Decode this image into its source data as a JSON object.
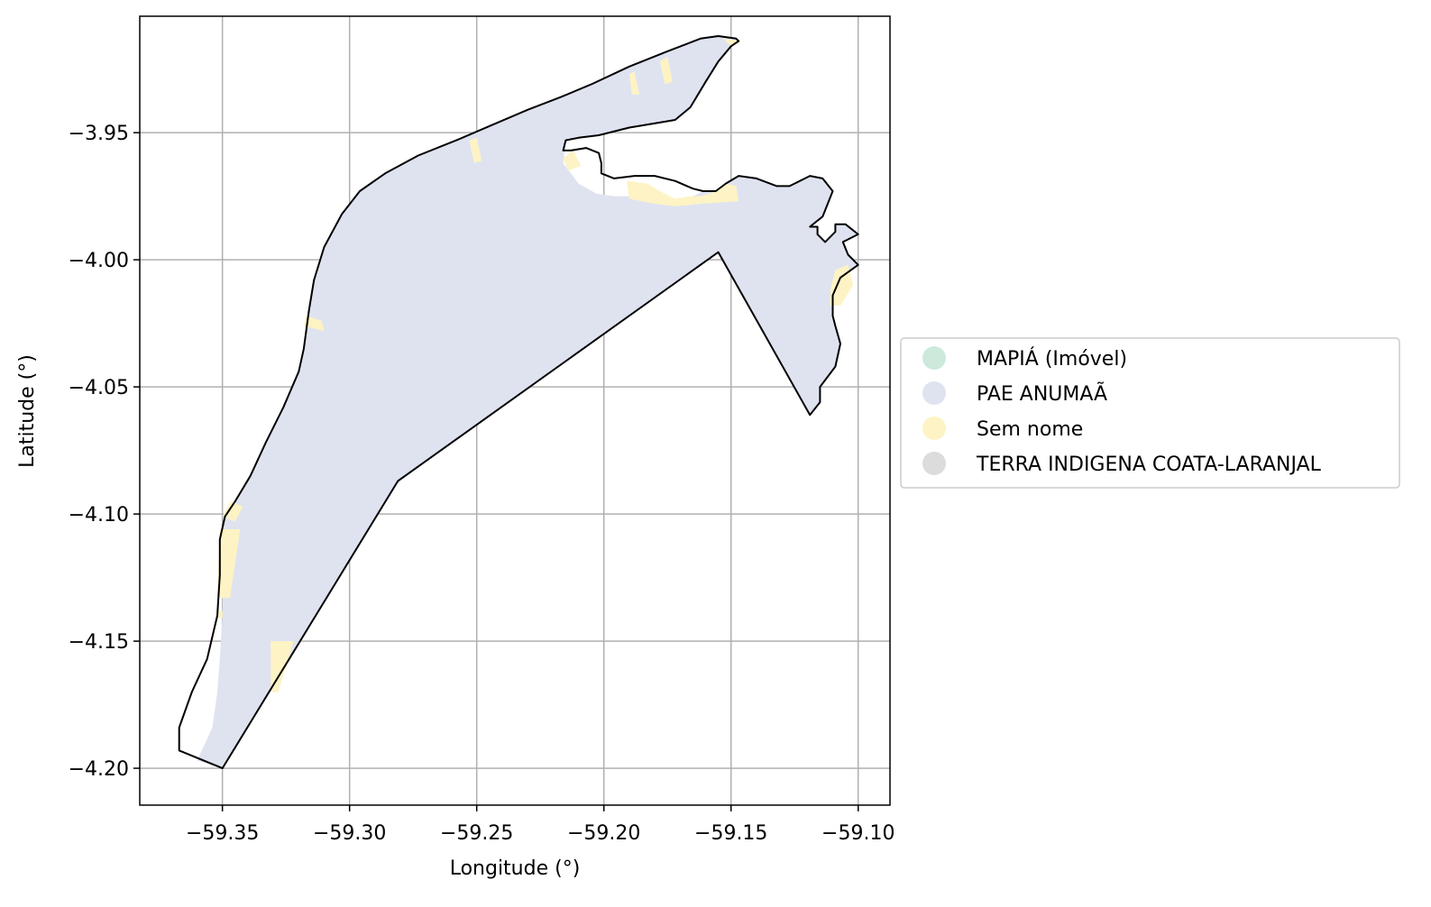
{
  "chart_data": {
    "type": "map",
    "xlabel": "Longitude (°)",
    "ylabel": "Latitude (°)",
    "xlim": [
      -59.3825,
      -59.0875
    ],
    "ylim": [
      -4.2145,
      -3.9042
    ],
    "xticks": [
      -59.35,
      -59.3,
      -59.25,
      -59.2,
      -59.15,
      -59.1
    ],
    "xtick_labels": [
      "−59.35",
      "−59.30",
      "−59.25",
      "−59.20",
      "−59.15",
      "−59.10"
    ],
    "yticks": [
      -3.95,
      -4.0,
      -4.05,
      -4.1,
      -4.15,
      -4.2
    ],
    "ytick_labels": [
      "−3.95",
      "−4.00",
      "−4.05",
      "−4.10",
      "−4.15",
      "−4.20"
    ],
    "grid": true,
    "legend_position": "right",
    "legend": [
      {
        "label": "MAPIÁ (Imóvel)",
        "color": "#cde9dc"
      },
      {
        "label": "PAE ANUMAÃ",
        "color": "#dfe3f0"
      },
      {
        "label": "Sem nome",
        "color": "#fdf3c4"
      },
      {
        "label": "TERRA INDIGENA COATA-LARANJAL",
        "color": "#dcdcdc"
      }
    ],
    "colors": {
      "boundary": "#000000",
      "pae": "#dfe3f0",
      "sem_nome": "#fdf3c4",
      "grid": "#b0b0b0"
    },
    "boundary_outline": [
      [
        -59.367,
        -4.193
      ],
      [
        -59.35,
        -4.2
      ],
      [
        -59.281,
        -4.087
      ],
      [
        -59.155,
        -3.997
      ],
      [
        -59.119,
        -4.061
      ],
      [
        -59.115,
        -4.056
      ],
      [
        -59.115,
        -4.05
      ],
      [
        -59.109,
        -4.042
      ],
      [
        -59.107,
        -4.033
      ],
      [
        -59.109,
        -4.026
      ],
      [
        -59.11,
        -4.022
      ],
      [
        -59.11,
        -4.014
      ],
      [
        -59.107,
        -4.007
      ],
      [
        -59.1,
        -4.002
      ],
      [
        -59.104,
        -3.998
      ],
      [
        -59.106,
        -3.993
      ],
      [
        -59.1,
        -3.99
      ],
      [
        -59.105,
        -3.986
      ],
      [
        -59.109,
        -3.986
      ],
      [
        -59.109,
        -3.989
      ],
      [
        -59.113,
        -3.993
      ],
      [
        -59.116,
        -3.99
      ],
      [
        -59.116,
        -3.987
      ],
      [
        -59.119,
        -3.987
      ],
      [
        -59.114,
        -3.983
      ],
      [
        -59.11,
        -3.973
      ],
      [
        -59.114,
        -3.968
      ],
      [
        -59.119,
        -3.967
      ],
      [
        -59.127,
        -3.971
      ],
      [
        -59.132,
        -3.971
      ],
      [
        -59.14,
        -3.968
      ],
      [
        -59.147,
        -3.967
      ],
      [
        -59.152,
        -3.97
      ],
      [
        -59.156,
        -3.973
      ],
      [
        -59.161,
        -3.973
      ],
      [
        -59.165,
        -3.972
      ],
      [
        -59.172,
        -3.969
      ],
      [
        -59.18,
        -3.967
      ],
      [
        -59.188,
        -3.967
      ],
      [
        -59.196,
        -3.968
      ],
      [
        -59.201,
        -3.966
      ],
      [
        -59.201,
        -3.962
      ],
      [
        -59.202,
        -3.958
      ],
      [
        -59.207,
        -3.956
      ],
      [
        -59.213,
        -3.957
      ],
      [
        -59.216,
        -3.957
      ],
      [
        -59.215,
        -3.953
      ],
      [
        -59.21,
        -3.952
      ],
      [
        -59.202,
        -3.951
      ],
      [
        -59.19,
        -3.948
      ],
      [
        -59.178,
        -3.946
      ],
      [
        -59.172,
        -3.945
      ],
      [
        -59.166,
        -3.94
      ],
      [
        -59.16,
        -3.93
      ],
      [
        -59.155,
        -3.922
      ],
      [
        -59.15,
        -3.916
      ],
      [
        -59.147,
        -3.914
      ],
      [
        -59.148,
        -3.913
      ],
      [
        -59.155,
        -3.912
      ],
      [
        -59.162,
        -3.913
      ],
      [
        -59.175,
        -3.918
      ],
      [
        -59.19,
        -3.924
      ],
      [
        -59.205,
        -3.931
      ],
      [
        -59.217,
        -3.936
      ],
      [
        -59.23,
        -3.941
      ],
      [
        -59.244,
        -3.947
      ],
      [
        -59.258,
        -3.953
      ],
      [
        -59.273,
        -3.959
      ],
      [
        -59.286,
        -3.966
      ],
      [
        -59.296,
        -3.973
      ],
      [
        -59.303,
        -3.982
      ],
      [
        -59.31,
        -3.995
      ],
      [
        -59.314,
        -4.008
      ],
      [
        -59.316,
        -4.02
      ],
      [
        -59.318,
        -4.035
      ],
      [
        -59.32,
        -4.044
      ],
      [
        -59.326,
        -4.058
      ],
      [
        -59.333,
        -4.072
      ],
      [
        -59.339,
        -4.085
      ],
      [
        -59.345,
        -4.095
      ],
      [
        -59.349,
        -4.101
      ],
      [
        -59.351,
        -4.11
      ],
      [
        -59.351,
        -4.124
      ],
      [
        -59.352,
        -4.14
      ],
      [
        -59.356,
        -4.157
      ],
      [
        -59.362,
        -4.17
      ],
      [
        -59.367,
        -4.184
      ],
      [
        -59.367,
        -4.193
      ]
    ],
    "pae_polygon": [
      [
        -59.36,
        -4.197
      ],
      [
        -59.35,
        -4.2
      ],
      [
        -59.281,
        -4.087
      ],
      [
        -59.155,
        -3.997
      ],
      [
        -59.119,
        -4.061
      ],
      [
        -59.115,
        -4.056
      ],
      [
        -59.115,
        -4.05
      ],
      [
        -59.109,
        -4.042
      ],
      [
        -59.107,
        -4.033
      ],
      [
        -59.109,
        -4.026
      ],
      [
        -59.11,
        -4.022
      ],
      [
        -59.11,
        -4.014
      ],
      [
        -59.107,
        -4.007
      ],
      [
        -59.1,
        -4.002
      ],
      [
        -59.104,
        -3.998
      ],
      [
        -59.106,
        -3.993
      ],
      [
        -59.1,
        -3.99
      ],
      [
        -59.105,
        -3.986
      ],
      [
        -59.109,
        -3.986
      ],
      [
        -59.109,
        -3.989
      ],
      [
        -59.113,
        -3.993
      ],
      [
        -59.116,
        -3.99
      ],
      [
        -59.116,
        -3.987
      ],
      [
        -59.119,
        -3.987
      ],
      [
        -59.114,
        -3.983
      ],
      [
        -59.11,
        -3.973
      ],
      [
        -59.114,
        -3.968
      ],
      [
        -59.119,
        -3.967
      ],
      [
        -59.127,
        -3.971
      ],
      [
        -59.132,
        -3.971
      ],
      [
        -59.14,
        -3.968
      ],
      [
        -59.147,
        -3.967
      ],
      [
        -59.152,
        -3.97
      ],
      [
        -59.156,
        -3.973
      ],
      [
        -59.161,
        -3.973
      ],
      [
        -59.165,
        -3.975
      ],
      [
        -59.172,
        -3.976
      ],
      [
        -59.18,
        -3.975
      ],
      [
        -59.188,
        -3.975
      ],
      [
        -59.196,
        -3.975
      ],
      [
        -59.203,
        -3.974
      ],
      [
        -59.21,
        -3.97
      ],
      [
        -59.216,
        -3.962
      ],
      [
        -59.215,
        -3.953
      ],
      [
        -59.21,
        -3.952
      ],
      [
        -59.202,
        -3.951
      ],
      [
        -59.19,
        -3.948
      ],
      [
        -59.178,
        -3.946
      ],
      [
        -59.172,
        -3.945
      ],
      [
        -59.166,
        -3.94
      ],
      [
        -59.16,
        -3.93
      ],
      [
        -59.155,
        -3.922
      ],
      [
        -59.15,
        -3.916
      ],
      [
        -59.147,
        -3.914
      ],
      [
        -59.148,
        -3.913
      ],
      [
        -59.155,
        -3.912
      ],
      [
        -59.162,
        -3.913
      ],
      [
        -59.175,
        -3.918
      ],
      [
        -59.19,
        -3.924
      ],
      [
        -59.205,
        -3.931
      ],
      [
        -59.217,
        -3.936
      ],
      [
        -59.23,
        -3.941
      ],
      [
        -59.244,
        -3.947
      ],
      [
        -59.258,
        -3.953
      ],
      [
        -59.273,
        -3.959
      ],
      [
        -59.286,
        -3.966
      ],
      [
        -59.296,
        -3.973
      ],
      [
        -59.303,
        -3.982
      ],
      [
        -59.31,
        -3.995
      ],
      [
        -59.314,
        -4.008
      ],
      [
        -59.316,
        -4.02
      ],
      [
        -59.318,
        -4.035
      ],
      [
        -59.32,
        -4.044
      ],
      [
        -59.326,
        -4.058
      ],
      [
        -59.333,
        -4.072
      ],
      [
        -59.339,
        -4.085
      ],
      [
        -59.345,
        -4.095
      ],
      [
        -59.349,
        -4.101
      ],
      [
        -59.351,
        -4.11
      ],
      [
        -59.35,
        -4.124
      ],
      [
        -59.35,
        -4.14
      ],
      [
        -59.351,
        -4.157
      ],
      [
        -59.352,
        -4.17
      ],
      [
        -59.354,
        -4.184
      ],
      [
        -59.36,
        -4.197
      ]
    ],
    "sem_nome_parcels": [
      [
        [
          -59.322,
          -4.15
        ],
        [
          -59.331,
          -4.15
        ],
        [
          -59.331,
          -4.17
        ],
        [
          -59.328,
          -4.17
        ]
      ],
      [
        [
          -59.351,
          -4.106
        ],
        [
          -59.343,
          -4.106
        ],
        [
          -59.347,
          -4.133
        ],
        [
          -59.352,
          -4.133
        ]
      ],
      [
        [
          -59.347,
          -4.095
        ],
        [
          -59.342,
          -4.097
        ],
        [
          -59.345,
          -4.103
        ],
        [
          -59.35,
          -4.101
        ]
      ],
      [
        [
          -59.352,
          -4.138
        ],
        [
          -59.35,
          -4.138
        ],
        [
          -59.35,
          -4.141
        ],
        [
          -59.352,
          -4.141
        ]
      ],
      [
        [
          -59.317,
          -4.022
        ],
        [
          -59.311,
          -4.024
        ],
        [
          -59.31,
          -4.028
        ],
        [
          -59.318,
          -4.026
        ]
      ],
      [
        [
          -59.253,
          -3.953
        ],
        [
          -59.25,
          -3.952
        ],
        [
          -59.248,
          -3.961
        ],
        [
          -59.251,
          -3.962
        ]
      ],
      [
        [
          -59.216,
          -3.96
        ],
        [
          -59.212,
          -3.957
        ],
        [
          -59.209,
          -3.963
        ],
        [
          -59.214,
          -3.965
        ]
      ],
      [
        [
          -59.191,
          -3.969
        ],
        [
          -59.183,
          -3.97
        ],
        [
          -59.178,
          -3.973
        ],
        [
          -59.172,
          -3.976
        ],
        [
          -59.166,
          -3.975
        ],
        [
          -59.162,
          -3.975
        ],
        [
          -59.158,
          -3.974
        ],
        [
          -59.152,
          -3.97
        ],
        [
          -59.148,
          -3.971
        ],
        [
          -59.147,
          -3.977
        ],
        [
          -59.162,
          -3.978
        ],
        [
          -59.172,
          -3.979
        ],
        [
          -59.18,
          -3.978
        ],
        [
          -59.19,
          -3.976
        ]
      ],
      [
        [
          -59.19,
          -3.927
        ],
        [
          -59.188,
          -3.926
        ],
        [
          -59.186,
          -3.935
        ],
        [
          -59.189,
          -3.935
        ]
      ],
      [
        [
          -59.178,
          -3.922
        ],
        [
          -59.175,
          -3.92
        ],
        [
          -59.173,
          -3.93
        ],
        [
          -59.176,
          -3.931
        ]
      ],
      [
        [
          -59.153,
          -3.913
        ],
        [
          -59.146,
          -3.914
        ],
        [
          -59.15,
          -3.916
        ]
      ],
      [
        [
          -59.109,
          -4.004
        ],
        [
          -59.104,
          -4.002
        ],
        [
          -59.102,
          -4.01
        ],
        [
          -59.107,
          -4.018
        ],
        [
          -59.111,
          -4.018
        ],
        [
          -59.111,
          -4.012
        ]
      ]
    ]
  }
}
